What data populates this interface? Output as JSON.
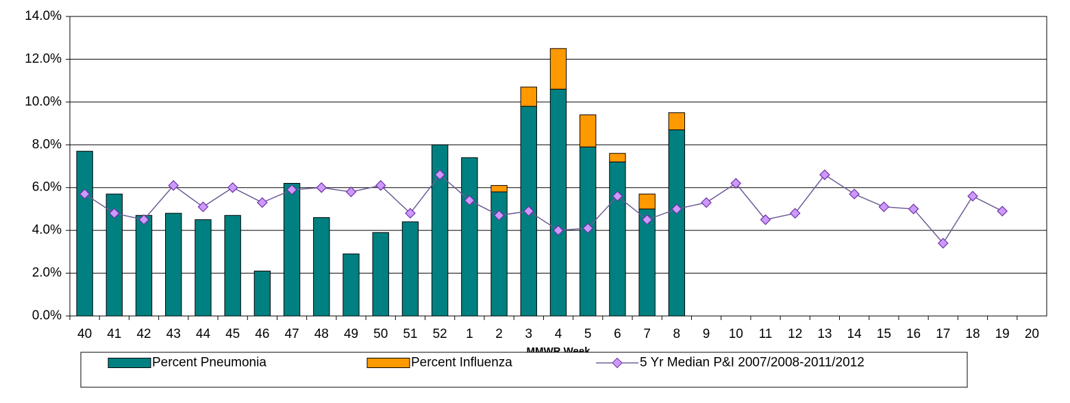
{
  "chart_data": {
    "type": "bar-line",
    "x_label": "MMWR Week",
    "categories": [
      "40",
      "41",
      "42",
      "43",
      "44",
      "45",
      "46",
      "47",
      "48",
      "49",
      "50",
      "51",
      "52",
      "1",
      "2",
      "3",
      "4",
      "5",
      "6",
      "7",
      "8",
      "9",
      "10",
      "11",
      "12",
      "13",
      "14",
      "15",
      "16",
      "17",
      "18",
      "19",
      "20"
    ],
    "series": [
      {
        "name": "Percent Pneumonia",
        "type": "bar",
        "stack": true,
        "color": "#008080",
        "values": [
          7.7,
          5.7,
          4.7,
          4.8,
          4.5,
          4.7,
          2.1,
          6.2,
          4.6,
          2.9,
          3.9,
          4.4,
          8.0,
          7.4,
          5.8,
          9.8,
          10.6,
          7.9,
          7.2,
          5.0,
          8.7,
          null,
          null,
          null,
          null,
          null,
          null,
          null,
          null,
          null,
          null,
          null,
          null
        ]
      },
      {
        "name": "Percent Influenza",
        "type": "bar",
        "stack": true,
        "color": "#ff9900",
        "values": [
          0,
          0,
          0,
          0,
          0,
          0,
          0,
          0,
          0,
          0,
          0,
          0,
          0,
          0,
          0.3,
          0.9,
          1.9,
          1.5,
          0.4,
          0.7,
          0.8,
          null,
          null,
          null,
          null,
          null,
          null,
          null,
          null,
          null,
          null,
          null,
          null
        ]
      },
      {
        "name": "5 Yr Median P&I 2007/2008-2011/2012",
        "type": "line",
        "color": "#6b5b95",
        "marker_color": "#cc99ff",
        "values": [
          5.7,
          4.8,
          4.5,
          6.1,
          5.1,
          6.0,
          5.3,
          5.9,
          6.0,
          5.8,
          6.1,
          4.8,
          6.6,
          5.4,
          4.7,
          4.9,
          4.0,
          4.1,
          5.6,
          4.5,
          5.0,
          5.3,
          6.2,
          4.5,
          4.8,
          6.6,
          5.7,
          5.1,
          5.0,
          3.4,
          5.6,
          4.9,
          null
        ]
      }
    ],
    "ylim": [
      0,
      14
    ],
    "yticks": [
      {
        "value": 0,
        "label": "0.0%"
      },
      {
        "value": 2,
        "label": "2.0%"
      },
      {
        "value": 4,
        "label": "4.0%"
      },
      {
        "value": 6,
        "label": "6.0%"
      },
      {
        "value": 8,
        "label": "8.0%"
      },
      {
        "value": 10,
        "label": "10.0%"
      },
      {
        "value": 12,
        "label": "12.0%"
      },
      {
        "value": 14,
        "label": "14.0%"
      }
    ],
    "grid": true,
    "legend": "bottom"
  }
}
